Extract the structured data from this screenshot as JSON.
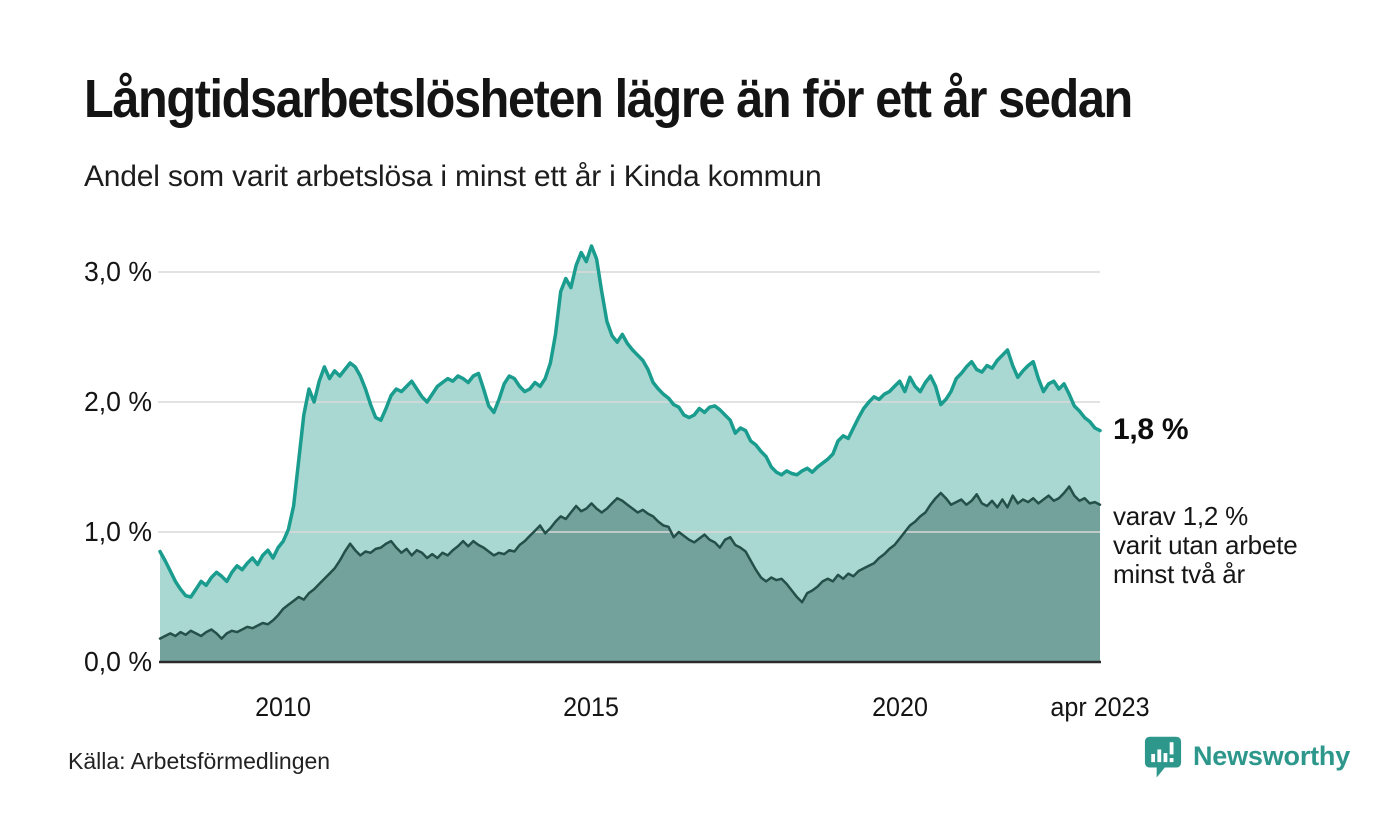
{
  "header": {
    "title": "Långtidsarbetslösheten lägre än för ett år sedan",
    "subtitle": "Andel som varit arbetslösa i minst ett år i Kinda kommun"
  },
  "chart_data": {
    "type": "area",
    "title": "Långtidsarbetslösheten lägre än för ett år sedan",
    "subtitle": "Andel som varit arbetslösa i minst ett år i Kinda kommun",
    "x_unit": "decimal_year_monthly",
    "x_start": 2008.0,
    "x_end": 2023.25,
    "ylim": [
      0,
      3.3
    ],
    "grid": true,
    "legend_position": "none",
    "yticks": [
      {
        "value": 3.0,
        "label": "3,0 %"
      },
      {
        "value": 2.0,
        "label": "2,0 %"
      },
      {
        "value": 1.0,
        "label": "1,0 %"
      },
      {
        "value": 0.0,
        "label": "0,0 %"
      }
    ],
    "xticks": [
      {
        "value": 2010,
        "label": "2010"
      },
      {
        "value": 2015,
        "label": "2015"
      },
      {
        "value": 2020,
        "label": "2020"
      },
      {
        "value": 2023.25,
        "label": "apr 2023"
      }
    ],
    "series": [
      {
        "name": "Andel arbetslösa minst ett år",
        "line_color": "#1a9c8e",
        "fill_color": "#a9d8d2",
        "end_value_label": "1,8 %",
        "values": [
          0.85,
          0.78,
          0.7,
          0.62,
          0.56,
          0.51,
          0.5,
          0.56,
          0.62,
          0.59,
          0.65,
          0.69,
          0.66,
          0.62,
          0.69,
          0.74,
          0.71,
          0.76,
          0.8,
          0.75,
          0.82,
          0.86,
          0.8,
          0.88,
          0.93,
          1.02,
          1.2,
          1.55,
          1.9,
          2.1,
          2.0,
          2.16,
          2.27,
          2.18,
          2.24,
          2.2,
          2.25,
          2.3,
          2.27,
          2.2,
          2.1,
          1.98,
          1.88,
          1.86,
          1.95,
          2.05,
          2.1,
          2.08,
          2.12,
          2.16,
          2.1,
          2.04,
          2.0,
          2.06,
          2.12,
          2.15,
          2.18,
          2.16,
          2.2,
          2.18,
          2.15,
          2.2,
          2.22,
          2.1,
          1.97,
          1.92,
          2.02,
          2.14,
          2.2,
          2.18,
          2.12,
          2.08,
          2.1,
          2.15,
          2.12,
          2.18,
          2.3,
          2.52,
          2.85,
          2.95,
          2.88,
          3.05,
          3.15,
          3.08,
          3.2,
          3.1,
          2.85,
          2.62,
          2.51,
          2.46,
          2.52,
          2.45,
          2.4,
          2.36,
          2.32,
          2.25,
          2.15,
          2.1,
          2.06,
          2.03,
          1.98,
          1.96,
          1.9,
          1.88,
          1.9,
          1.95,
          1.92,
          1.96,
          1.97,
          1.94,
          1.9,
          1.86,
          1.76,
          1.8,
          1.78,
          1.7,
          1.67,
          1.62,
          1.58,
          1.5,
          1.46,
          1.44,
          1.47,
          1.45,
          1.44,
          1.47,
          1.49,
          1.46,
          1.5,
          1.53,
          1.56,
          1.6,
          1.7,
          1.74,
          1.72,
          1.8,
          1.88,
          1.95,
          2.0,
          2.04,
          2.02,
          2.06,
          2.08,
          2.12,
          2.16,
          2.08,
          2.19,
          2.12,
          2.08,
          2.15,
          2.2,
          2.12,
          1.98,
          2.02,
          2.08,
          2.18,
          2.22,
          2.27,
          2.31,
          2.25,
          2.23,
          2.28,
          2.26,
          2.32,
          2.36,
          2.4,
          2.28,
          2.19,
          2.24,
          2.28,
          2.31,
          2.18,
          2.08,
          2.14,
          2.16,
          2.1,
          2.14,
          2.06,
          1.97,
          1.93,
          1.88,
          1.85,
          1.8,
          1.78
        ]
      },
      {
        "name": "Varav utan arbete minst två år",
        "line_color": "#25504a",
        "fill_color": "#73a29c",
        "end_value_label": "varav 1,2 % varit utan arbete minst två år",
        "values": [
          0.18,
          0.2,
          0.22,
          0.2,
          0.23,
          0.21,
          0.24,
          0.22,
          0.2,
          0.23,
          0.25,
          0.22,
          0.18,
          0.22,
          0.24,
          0.23,
          0.25,
          0.27,
          0.26,
          0.28,
          0.3,
          0.29,
          0.32,
          0.36,
          0.41,
          0.44,
          0.47,
          0.5,
          0.48,
          0.53,
          0.56,
          0.6,
          0.64,
          0.68,
          0.72,
          0.78,
          0.85,
          0.91,
          0.86,
          0.82,
          0.85,
          0.84,
          0.87,
          0.88,
          0.91,
          0.93,
          0.88,
          0.84,
          0.87,
          0.82,
          0.86,
          0.84,
          0.8,
          0.83,
          0.8,
          0.84,
          0.82,
          0.86,
          0.89,
          0.93,
          0.89,
          0.93,
          0.9,
          0.88,
          0.85,
          0.82,
          0.84,
          0.83,
          0.86,
          0.85,
          0.9,
          0.93,
          0.97,
          1.01,
          1.05,
          0.99,
          1.03,
          1.08,
          1.12,
          1.1,
          1.15,
          1.2,
          1.16,
          1.18,
          1.22,
          1.18,
          1.15,
          1.18,
          1.22,
          1.26,
          1.24,
          1.21,
          1.18,
          1.15,
          1.17,
          1.14,
          1.12,
          1.08,
          1.05,
          1.04,
          0.96,
          1.0,
          0.97,
          0.94,
          0.92,
          0.95,
          0.98,
          0.94,
          0.92,
          0.88,
          0.94,
          0.96,
          0.9,
          0.88,
          0.85,
          0.78,
          0.71,
          0.65,
          0.62,
          0.65,
          0.63,
          0.64,
          0.6,
          0.55,
          0.5,
          0.46,
          0.53,
          0.55,
          0.58,
          0.62,
          0.64,
          0.62,
          0.67,
          0.64,
          0.68,
          0.66,
          0.7,
          0.72,
          0.74,
          0.76,
          0.8,
          0.83,
          0.87,
          0.9,
          0.95,
          1.0,
          1.05,
          1.08,
          1.12,
          1.15,
          1.21,
          1.26,
          1.3,
          1.26,
          1.21,
          1.23,
          1.25,
          1.21,
          1.24,
          1.29,
          1.22,
          1.2,
          1.24,
          1.19,
          1.25,
          1.19,
          1.28,
          1.22,
          1.25,
          1.23,
          1.26,
          1.22,
          1.25,
          1.28,
          1.24,
          1.26,
          1.3,
          1.35,
          1.28,
          1.24,
          1.26,
          1.22,
          1.23,
          1.21
        ]
      }
    ]
  },
  "annotations": {
    "latest_value": "1,8 %",
    "secondary_line1": "varav 1,2 %",
    "secondary_line2": "varit utan arbete",
    "secondary_line3": "minst två år"
  },
  "footer": {
    "source": "Källa: Arbetsförmedlingen",
    "brand_name": "Newsworthy",
    "brand_color": "#2d978c",
    "grid_color": "#d9d9d9",
    "baseline_color": "#2b2b2b"
  }
}
